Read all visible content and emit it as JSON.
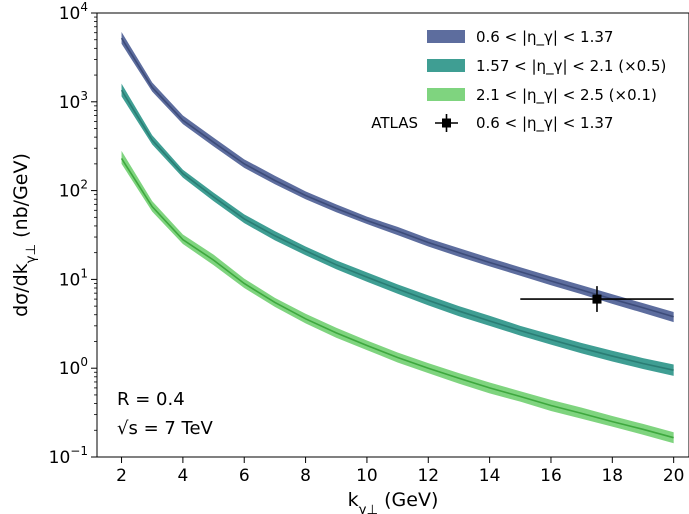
{
  "chart_data": {
    "type": "area",
    "xlabel": "k_{γ⊥} (GeV)",
    "ylabel": "dσ/dk_{γ⊥}  (nb/GeV)",
    "xlim": [
      1.2,
      20.5
    ],
    "ylim": [
      0.1,
      10000
    ],
    "yscale": "log",
    "x_ticks": [
      2,
      4,
      6,
      8,
      10,
      12,
      14,
      16,
      18,
      20
    ],
    "y_ticks": [
      {
        "value": 0.1,
        "base": "10",
        "exp": "−1"
      },
      {
        "value": 1,
        "base": "10",
        "exp": "0"
      },
      {
        "value": 10,
        "base": "10",
        "exp": "1"
      },
      {
        "value": 100,
        "base": "10",
        "exp": "2"
      },
      {
        "value": 1000,
        "base": "10",
        "exp": "3"
      },
      {
        "value": 10000,
        "base": "10",
        "exp": "4"
      }
    ],
    "legend_position": "top-right",
    "x": [
      2,
      3,
      4,
      5,
      6,
      7,
      8,
      9,
      10,
      11,
      12,
      13,
      14,
      15,
      16,
      17,
      18,
      19,
      20
    ],
    "series": [
      {
        "name": "0.6 < |η_γ| < 1.37",
        "color": "#5d6d9e",
        "line_color": "#3d4c7a",
        "center": [
          5200,
          1450,
          620,
          350,
          200,
          130,
          88,
          63,
          46,
          35,
          26,
          20,
          15.5,
          12.2,
          9.6,
          7.6,
          6.0,
          4.8,
          3.8
        ],
        "lower": [
          4500,
          1300,
          560,
          315,
          180,
          118,
          80,
          57,
          42,
          31.5,
          23.5,
          18,
          14,
          11,
          8.6,
          6.8,
          5.3,
          4.2,
          3.3
        ],
        "upper": [
          6100,
          1650,
          700,
          395,
          225,
          147,
          98,
          70,
          51,
          39,
          29,
          22.5,
          17.5,
          13.7,
          10.8,
          8.6,
          6.8,
          5.4,
          4.3
        ]
      },
      {
        "name": "1.57 < |η_γ| < 2.1 (×0.5)",
        "color": "#3f9e93",
        "line_color": "#2a7d74",
        "center": [
          1350,
          370,
          155,
          85,
          48,
          31,
          21,
          14.6,
          10.6,
          7.8,
          5.8,
          4.4,
          3.4,
          2.65,
          2.1,
          1.68,
          1.37,
          1.13,
          0.95
        ],
        "lower": [
          1150,
          330,
          140,
          76,
          43,
          27.5,
          18.7,
          13,
          9.4,
          6.9,
          5.1,
          3.85,
          3,
          2.33,
          1.84,
          1.47,
          1.19,
          0.98,
          0.82
        ],
        "upper": [
          1600,
          420,
          172,
          95,
          54,
          35,
          23.5,
          16.4,
          12,
          8.8,
          6.6,
          5,
          3.9,
          3,
          2.4,
          1.92,
          1.57,
          1.3,
          1.1
        ]
      },
      {
        "name": "2.1 < |η_γ| < 2.5 (×0.1)",
        "color": "#7fd47f",
        "line_color": "#3ea83e",
        "center": [
          230,
          66,
          28,
          16.5,
          9,
          5.5,
          3.6,
          2.5,
          1.8,
          1.32,
          1.0,
          0.77,
          0.6,
          0.48,
          0.38,
          0.31,
          0.25,
          0.205,
          0.165
        ],
        "lower": [
          200,
          58,
          25,
          14.5,
          8,
          4.9,
          3.2,
          2.2,
          1.6,
          1.16,
          0.88,
          0.67,
          0.52,
          0.42,
          0.33,
          0.27,
          0.22,
          0.178,
          0.143
        ],
        "upper": [
          280,
          76,
          32,
          19,
          10.2,
          6.2,
          4.1,
          2.85,
          2.05,
          1.5,
          1.14,
          0.88,
          0.69,
          0.55,
          0.44,
          0.36,
          0.29,
          0.236,
          0.19
        ]
      }
    ],
    "data_points": [
      {
        "name": "ATLAS",
        "label": "0.6 < |η_γ| < 1.37",
        "x": 17.5,
        "y": 6.0,
        "xerr": [
          15,
          20
        ],
        "yerr": [
          4.3,
          8.4
        ]
      }
    ],
    "annotations": {
      "line1": "R = 0.4",
      "line2": "√s = 7 TeV"
    }
  }
}
